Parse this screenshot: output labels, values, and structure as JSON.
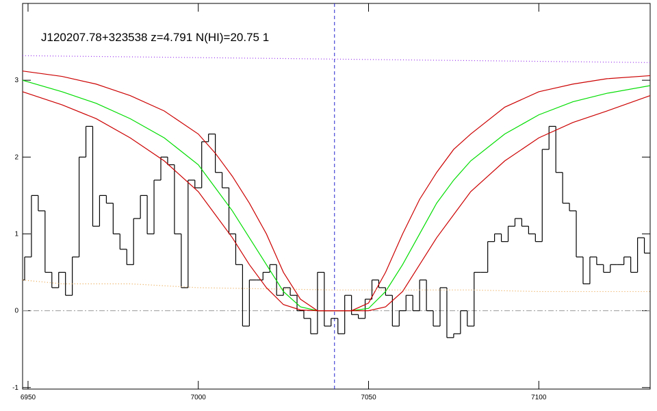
{
  "chart_data": {
    "type": "line",
    "title": "J120207.78+323538 z=4.791 N(HI)=20.75 1",
    "xlim": [
      6948.4,
      7132.7
    ],
    "ylim": [
      -1.02,
      4.0
    ],
    "xticks": [
      6950,
      7000,
      7050,
      7100
    ],
    "yticks": [
      -1,
      0,
      1,
      2,
      3
    ],
    "series": [
      {
        "color": "#000000",
        "style": "step",
        "x": [
          6948,
          6950,
          6952,
          6954,
          6956,
          6958,
          6960,
          6962,
          6964,
          6966,
          6968,
          6970,
          6972,
          6974,
          6976,
          6978,
          6980,
          6982,
          6984,
          6986,
          6988,
          6990,
          6992,
          6994,
          6996,
          6998,
          7000,
          7002,
          7004,
          7006,
          7008,
          7010,
          7012,
          7014,
          7016,
          7018,
          7020,
          7022,
          7024,
          7026,
          7028,
          7030,
          7032,
          7034,
          7036,
          7038,
          7040,
          7042,
          7044,
          7046,
          7048,
          7050,
          7052,
          7054,
          7056,
          7058,
          7060,
          7062,
          7064,
          7066,
          7068,
          7070,
          7072,
          7074,
          7076,
          7078,
          7080,
          7082,
          7084,
          7086,
          7088,
          7090,
          7092,
          7094,
          7096,
          7098,
          7100,
          7102,
          7104,
          7106,
          7108,
          7110,
          7112,
          7114,
          7116,
          7118,
          7120,
          7122,
          7124,
          7126,
          7128,
          7130,
          7132
        ],
        "values": [
          0.4,
          0.7,
          1.5,
          1.3,
          0.5,
          0.3,
          0.5,
          0.2,
          0.7,
          2.0,
          2.4,
          1.1,
          1.5,
          1.4,
          1.0,
          0.8,
          0.6,
          1.2,
          1.5,
          1.0,
          1.7,
          2.0,
          1.9,
          1.0,
          0.3,
          1.7,
          1.6,
          2.2,
          2.3,
          1.8,
          1.6,
          1.0,
          0.6,
          -0.2,
          0.4,
          0.4,
          0.5,
          0.6,
          0.2,
          0.3,
          0.2,
          0.0,
          -0.1,
          -0.3,
          0.5,
          -0.2,
          -0.1,
          -0.3,
          0.2,
          -0.05,
          -0.1,
          0.15,
          0.4,
          0.3,
          0.2,
          -0.2,
          0.0,
          0.2,
          0.0,
          0.4,
          0.0,
          -0.2,
          0.3,
          -0.35,
          -0.3,
          0.0,
          -0.2,
          0.5,
          0.5,
          0.9,
          1.0,
          0.9,
          1.1,
          1.2,
          1.1,
          1.0,
          0.9,
          2.1,
          2.4,
          1.8,
          1.4,
          1.3,
          0.7,
          0.35,
          0.7,
          0.6,
          0.5,
          0.6,
          0.6,
          0.7,
          0.5,
          0.95,
          0.75
        ]
      },
      {
        "color": "#00dd00",
        "style": "solid",
        "x": [
          6948,
          6960,
          6970,
          6980,
          6990,
          7000,
          7005,
          7010,
          7015,
          7020,
          7025,
          7030,
          7035,
          7040,
          7045,
          7050,
          7055,
          7060,
          7065,
          7070,
          7075,
          7080,
          7090,
          7100,
          7110,
          7120,
          7133
        ],
        "values": [
          3.0,
          2.85,
          2.7,
          2.5,
          2.25,
          1.9,
          1.6,
          1.3,
          0.95,
          0.6,
          0.25,
          0.05,
          0,
          0,
          0,
          0.03,
          0.25,
          0.6,
          1.0,
          1.4,
          1.7,
          1.95,
          2.3,
          2.55,
          2.72,
          2.83,
          2.93
        ]
      },
      {
        "color": "#cc0000",
        "style": "solid",
        "x": [
          6948,
          6960,
          6970,
          6980,
          6990,
          7000,
          7005,
          7010,
          7015,
          7020,
          7025,
          7030,
          7035,
          7040,
          7045,
          7050,
          7055,
          7060,
          7065,
          7070,
          7075,
          7080,
          7090,
          7100,
          7110,
          7120,
          7133
        ],
        "values": [
          3.12,
          3.05,
          2.95,
          2.8,
          2.6,
          2.3,
          2.05,
          1.75,
          1.4,
          1.0,
          0.5,
          0.15,
          0,
          0,
          0,
          0.1,
          0.5,
          1.0,
          1.45,
          1.8,
          2.1,
          2.3,
          2.65,
          2.85,
          2.95,
          3.02,
          3.06
        ]
      },
      {
        "color": "#cc0000",
        "style": "solid",
        "x": [
          6948,
          6960,
          6970,
          6980,
          6990,
          7000,
          7005,
          7010,
          7015,
          7020,
          7025,
          7030,
          7035,
          7040,
          7045,
          7050,
          7055,
          7060,
          7065,
          7070,
          7075,
          7080,
          7090,
          7100,
          7110,
          7120,
          7133
        ],
        "values": [
          2.85,
          2.68,
          2.5,
          2.25,
          1.95,
          1.55,
          1.25,
          0.95,
          0.6,
          0.3,
          0.08,
          0.01,
          0,
          0,
          0,
          0,
          0.05,
          0.25,
          0.6,
          0.95,
          1.25,
          1.55,
          1.95,
          2.25,
          2.45,
          2.6,
          2.8
        ]
      },
      {
        "color": "#e8a040",
        "style": "dotted",
        "x": [
          6948,
          6960,
          6980,
          7000,
          7040,
          7080,
          7100,
          7133
        ],
        "values": [
          0.4,
          0.35,
          0.35,
          0.3,
          0.27,
          0.27,
          0.25,
          0.25
        ]
      },
      {
        "color": "#9933ee",
        "style": "dotted",
        "x": [
          6948,
          7133
        ],
        "values": [
          3.32,
          3.23
        ]
      }
    ],
    "vline": {
      "x": 7040,
      "color": "#2222cc"
    },
    "hline": {
      "y": 0,
      "color": "#999999"
    }
  }
}
